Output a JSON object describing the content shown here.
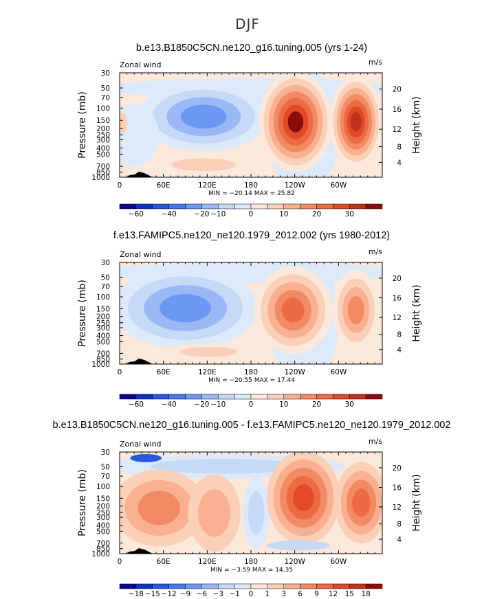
{
  "figure_title": "DJF",
  "colors": {
    "neg": [
      "#08088c",
      "#1030c8",
      "#2658e0",
      "#4678ec",
      "#6a98f2",
      "#9ab8f6",
      "#c6daf8",
      "#ddeafb"
    ],
    "pos": [
      "#fde8dc",
      "#fbd0b8",
      "#f8b090",
      "#f28a64",
      "#ec6a44",
      "#e04a26",
      "#c0321a",
      "#8e0c0c"
    ],
    "orography": "#000000"
  },
  "chart_data": [
    {
      "type": "contour",
      "title": "b.e13.B1850C5CN.ne120_g16.tuning.005 (yrs 1-24)",
      "variable_label": "Zonal wind",
      "units_label": "m/s",
      "ylabel": "Pressure (mb)",
      "ylabel_right": "Height (km)",
      "xticks": [
        "0",
        "60E",
        "120E",
        "180",
        "120W",
        "60W"
      ],
      "yticks": [
        "30",
        "50",
        "70",
        "100",
        "150",
        "200",
        "250",
        "300",
        "400",
        "500",
        "700",
        "850",
        "1000"
      ],
      "yticks_right": [
        "20",
        "16",
        "12",
        "8",
        "4"
      ],
      "min_max": "MIN = −20.14   MAX =  25.82",
      "colorbar_labels": [
        "−60",
        "−40",
        "−20",
        "−10",
        "0",
        "10",
        "20",
        "30"
      ],
      "min": -20.14,
      "max": 25.82
    },
    {
      "type": "contour",
      "title": "f.e13.FAMIPC5.ne120_ne120.1979_2012.002 (yrs 1980-2012)",
      "variable_label": "Zonal wind",
      "units_label": "m/s",
      "ylabel": "Pressure (mb)",
      "ylabel_right": "Height (km)",
      "xticks": [
        "0",
        "60E",
        "120E",
        "180",
        "120W",
        "60W"
      ],
      "yticks": [
        "30",
        "50",
        "70",
        "100",
        "150",
        "200",
        "250",
        "300",
        "400",
        "500",
        "700",
        "850",
        "1000"
      ],
      "yticks_right": [
        "20",
        "16",
        "12",
        "8",
        "4"
      ],
      "min_max": "MIN = −20.55   MAX =  17.44",
      "colorbar_labels": [
        "−60",
        "−40",
        "−20",
        "−10",
        "0",
        "10",
        "20",
        "30"
      ],
      "min": -20.55,
      "max": 17.44
    },
    {
      "type": "contour",
      "title": "b.e13.B1850C5CN.ne120_g16.tuning.005 - f.e13.FAMIPC5.ne120_ne120.1979_2012.002",
      "variable_label": "Zonal wind",
      "units_label": "m/s",
      "ylabel": "Pressure (mb)",
      "ylabel_right": "Height (km)",
      "xticks": [
        "0",
        "60E",
        "120E",
        "180",
        "120W",
        "60W"
      ],
      "yticks": [
        "30",
        "50",
        "70",
        "100",
        "150",
        "200",
        "250",
        "300",
        "400",
        "500",
        "700",
        "850",
        "1000"
      ],
      "yticks_right": [
        "20",
        "16",
        "12",
        "8",
        "4"
      ],
      "min_max": "MIN =  −3.59   MAX =  14.35",
      "colorbar_labels": [
        "−18",
        "−15",
        "−12",
        "−9",
        "−6",
        "−3",
        "−1",
        "0",
        "1",
        "3",
        "6",
        "9",
        "12",
        "15",
        "18"
      ],
      "min": -3.59,
      "max": 14.35
    }
  ]
}
